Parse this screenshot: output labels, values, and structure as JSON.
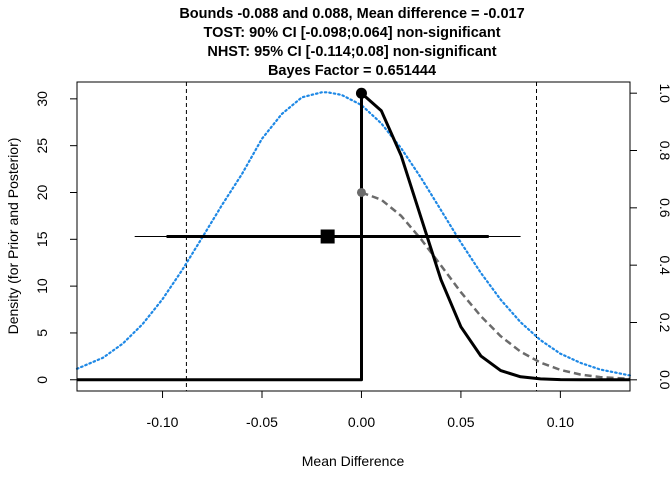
{
  "chart_data": {
    "type": "line",
    "title_lines": [
      "Bounds -0.088 and 0.088, Mean difference = -0.017",
      "TOST: 90% CI [-0.098;0.064] non-significant",
      "NHST: 95% CI [-0.114;0.08] non-significant",
      "Bayes Factor = 0.651444"
    ],
    "xlabel": "Mean Difference",
    "ylabel": "Density (for Prior and Posterior)",
    "xlim": [
      -0.143,
      0.135
    ],
    "ylim": [
      -1.2,
      31.8
    ],
    "right_axis_lim": [
      -0.039,
      1.039
    ],
    "x_ticks": [
      -0.1,
      -0.05,
      0.0,
      0.05,
      0.1
    ],
    "x_tick_labels": [
      "-0.10",
      "-0.05",
      "0.00",
      "0.05",
      "0.10"
    ],
    "y_ticks": [
      0,
      5,
      10,
      15,
      20,
      25,
      30
    ],
    "y_tick_labels": [
      "0",
      "5",
      "10",
      "15",
      "20",
      "25",
      "30"
    ],
    "right_ticks": [
      0.0,
      0.2,
      0.4,
      0.6,
      0.8,
      1.0
    ],
    "right_tick_labels": [
      "0.0",
      "0.2",
      "0.4",
      "0.6",
      "0.8",
      "1.0"
    ],
    "equivalence_bounds": [
      -0.088,
      0.088
    ],
    "mean_difference": -0.017,
    "ci_90": [
      -0.098,
      0.064
    ],
    "ci_95": [
      -0.114,
      0.08
    ],
    "interval_height_right_axis": 0.5,
    "bayes_factor": 0.651444,
    "series": [
      {
        "style": "dotted",
        "color": "#1e88e5",
        "x": [
          -0.143,
          -0.13,
          -0.12,
          -0.11,
          -0.1,
          -0.09,
          -0.08,
          -0.07,
          -0.06,
          -0.05,
          -0.04,
          -0.03,
          -0.02,
          -0.017,
          -0.01,
          0.0,
          0.01,
          0.02,
          0.03,
          0.04,
          0.05,
          0.06,
          0.07,
          0.08,
          0.09,
          0.1,
          0.11,
          0.12,
          0.135
        ],
        "y": [
          1.17,
          2.35,
          3.86,
          5.94,
          8.6,
          11.75,
          15.2,
          18.7,
          22.0,
          25.74,
          28.39,
          30.15,
          30.7,
          30.7,
          30.42,
          29.33,
          27.38,
          24.72,
          21.55,
          18.11,
          14.65,
          11.42,
          8.55,
          6.15,
          4.24,
          2.78,
          1.81,
          1.1,
          0.46
        ]
      },
      {
        "style": "dashed",
        "color": "#6b6b6b",
        "x": [
          0.0,
          0.01,
          0.02,
          0.03,
          0.04,
          0.05,
          0.06,
          0.07,
          0.08,
          0.09,
          0.1,
          0.11,
          0.12,
          0.135
        ],
        "y": [
          20.0,
          19.23,
          17.5,
          15.0,
          12.2,
          9.35,
          6.8,
          4.65,
          3.0,
          1.83,
          1.05,
          0.56,
          0.28,
          0.1
        ]
      },
      {
        "style": "solid",
        "color": "#000000",
        "x": [
          -0.143,
          0.0,
          0.0,
          0.01,
          0.02,
          0.03,
          0.04,
          0.05,
          0.06,
          0.07,
          0.08,
          0.09,
          0.1,
          0.11,
          0.12,
          0.135
        ],
        "y": [
          0.0,
          0.0,
          30.6,
          28.74,
          23.93,
          17.3,
          10.68,
          5.66,
          2.55,
          0.98,
          0.32,
          0.09,
          0.02,
          0.01,
          0.0,
          0.0
        ]
      }
    ],
    "markers": [
      {
        "x": 0.0,
        "y": 30.6,
        "shape": "circle",
        "color": "#000000"
      },
      {
        "x": 0.0,
        "y": 20.0,
        "shape": "circle",
        "color": "#6b6b6b"
      }
    ]
  }
}
